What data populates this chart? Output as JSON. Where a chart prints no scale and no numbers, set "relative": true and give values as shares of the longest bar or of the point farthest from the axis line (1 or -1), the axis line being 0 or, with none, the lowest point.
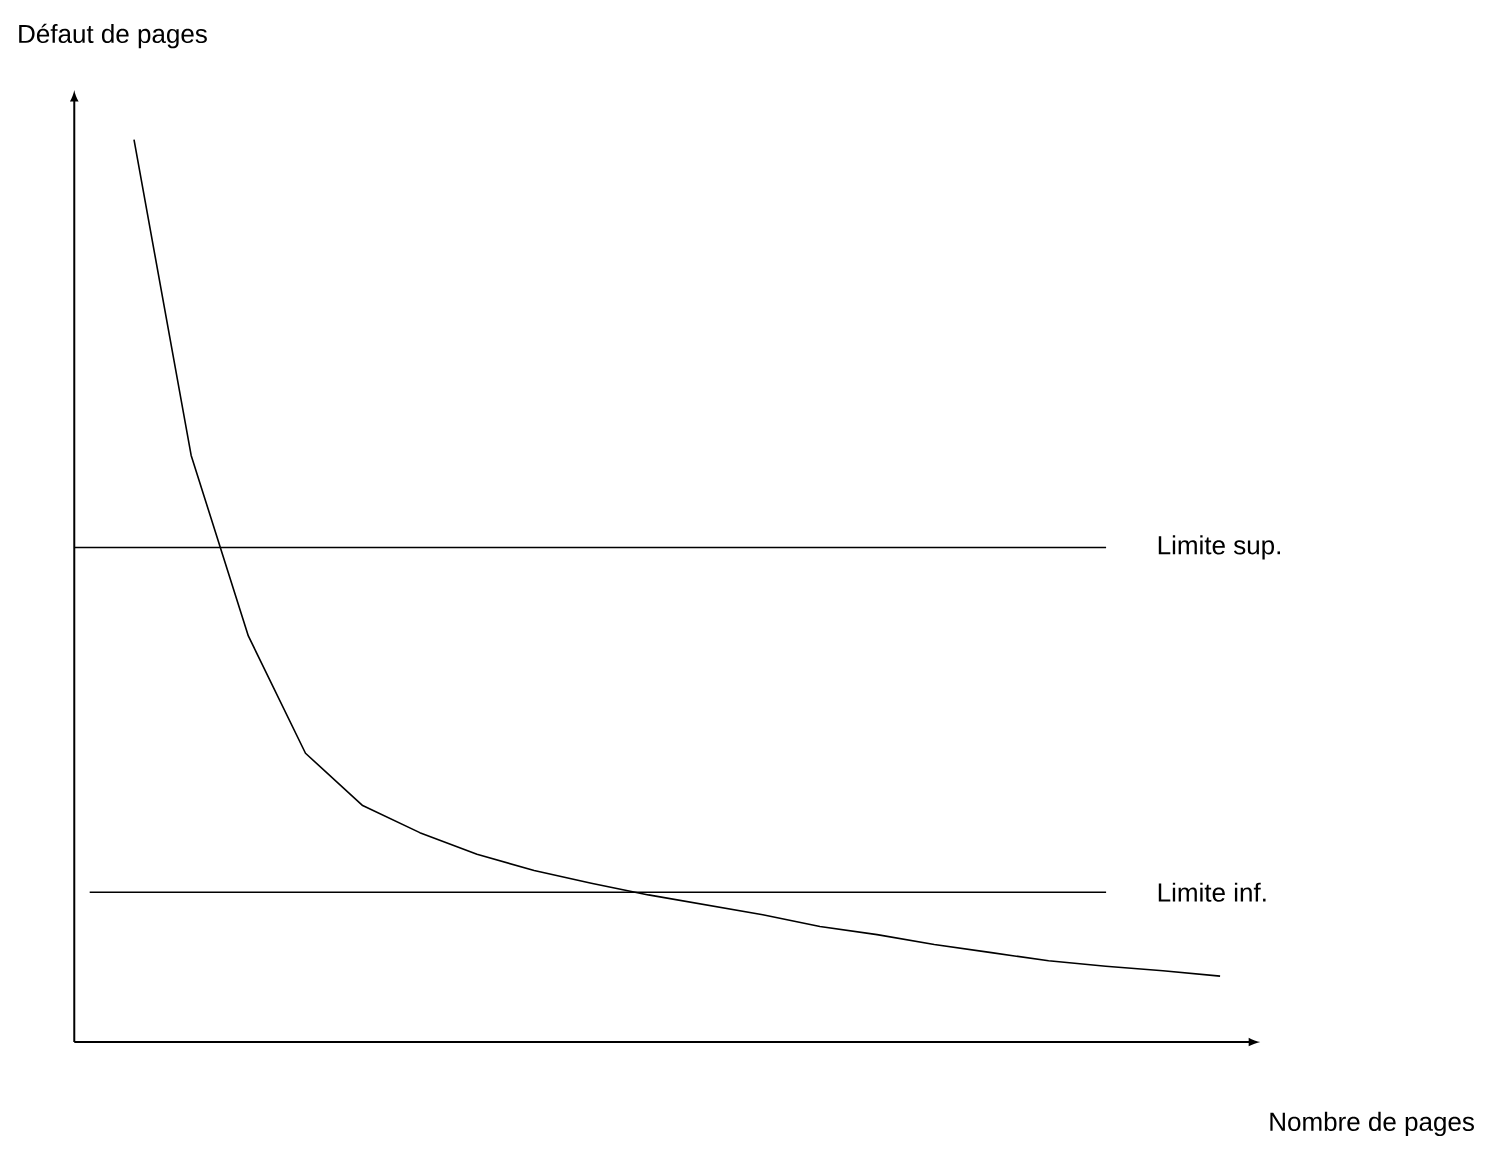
{
  "chart_data": {
    "type": "line",
    "relative": true,
    "xlabel": "Nombre de pages",
    "ylabel": "Défaut de pages",
    "color": "#000000",
    "marker": "none",
    "line_style": "solid",
    "categories": [
      null,
      null,
      null,
      null,
      null,
      null,
      null,
      null,
      null,
      null,
      null,
      null,
      null,
      null,
      null,
      null,
      null,
      null,
      null,
      null
    ],
    "values": [
      1.0,
      0.65,
      0.45,
      0.32,
      0.262,
      0.232,
      0.208,
      0.19,
      0.176,
      0.163,
      0.152,
      0.141,
      0.128,
      0.119,
      0.108,
      0.099,
      0.09,
      0.084,
      0.079,
      0.073
    ],
    "ref_lines": [
      {
        "axis": "y",
        "value": 0.548,
        "label": "Limite sup."
      },
      {
        "axis": "y",
        "value": 0.166,
        "label": "Limite inf."
      }
    ]
  }
}
